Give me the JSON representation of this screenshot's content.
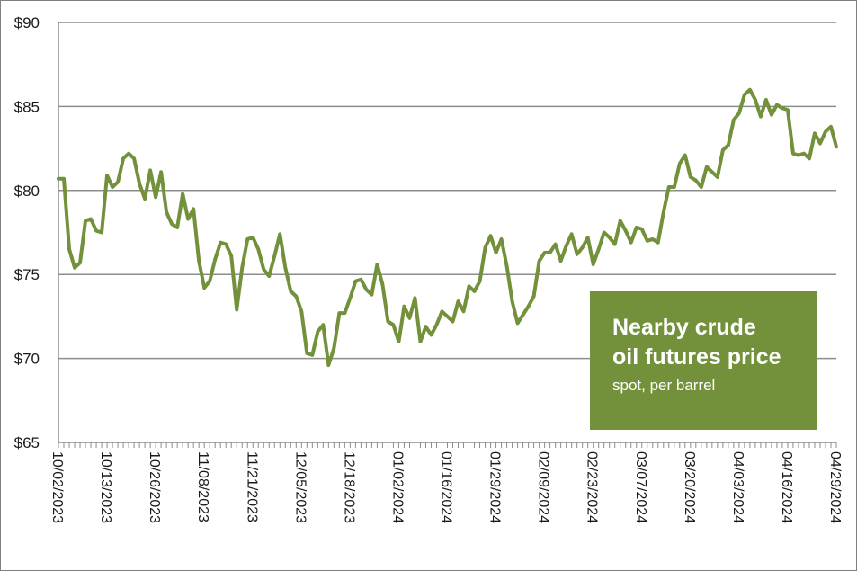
{
  "chart_data": {
    "type": "line",
    "series": [
      {
        "name": "",
        "color": "#72913a",
        "values": [
          80.7,
          80.7,
          76.5,
          75.4,
          75.7,
          78.2,
          78.3,
          77.6,
          77.5,
          80.9,
          80.2,
          80.5,
          81.9,
          82.2,
          81.9,
          80.4,
          79.5,
          81.2,
          79.6,
          81.1,
          78.7,
          78.0,
          77.8,
          79.8,
          78.3,
          78.9,
          75.8,
          74.2,
          74.6,
          75.9,
          76.9,
          76.8,
          76.1,
          72.9,
          75.4,
          77.1,
          77.2,
          76.5,
          75.3,
          74.9,
          76.1,
          77.4,
          75.4,
          74.0,
          73.7,
          72.8,
          70.3,
          70.2,
          71.6,
          72.0,
          69.6,
          70.6,
          72.7,
          72.7,
          73.6,
          74.6,
          74.7,
          74.1,
          73.8,
          75.6,
          74.4,
          72.2,
          72.0,
          71.0,
          73.1,
          72.4,
          73.6,
          71.0,
          71.9,
          71.4,
          72.0,
          72.8,
          72.5,
          72.2,
          73.4,
          72.8,
          74.3,
          74.0,
          74.6,
          76.6,
          77.3,
          76.3,
          77.1,
          75.5,
          73.4,
          72.1,
          72.6,
          73.1,
          73.7,
          75.8,
          76.3,
          76.3,
          76.8,
          75.8,
          76.7,
          77.4,
          76.2,
          76.6,
          77.2,
          75.6,
          76.5,
          77.5,
          77.2,
          76.8,
          78.2,
          77.6,
          76.9,
          77.8,
          77.7,
          77.0,
          77.1,
          76.9,
          78.7,
          80.2,
          80.2,
          81.6,
          82.1,
          80.8,
          80.6,
          80.2,
          81.4,
          81.1,
          80.8,
          82.4,
          82.7,
          84.2,
          84.6,
          85.7,
          86.0,
          85.4,
          84.4,
          85.4,
          84.5,
          85.1,
          84.9,
          84.8,
          82.2,
          82.1,
          82.2,
          81.9,
          83.4,
          82.8,
          83.5,
          83.8,
          82.6
        ]
      }
    ],
    "x_tick_labels": [
      "10/02/2023",
      "10/13/2023",
      "10/26/2023",
      "11/08/2023",
      "11/21/2023",
      "12/05/2023",
      "12/18/2023",
      "01/02/2024",
      "01/16/2024",
      "01/29/2024",
      "02/09/2024",
      "02/23/2024",
      "03/07/2024",
      "03/20/2024",
      "04/03/2024",
      "04/16/2024",
      "04/29/2024"
    ],
    "y_ticks": [
      65,
      70,
      75,
      80,
      85,
      90
    ],
    "y_tick_labels": [
      "$65",
      "$70",
      "$75",
      "$80",
      "$85",
      "$90"
    ],
    "ylim": [
      65,
      90
    ],
    "grid": "horizontal",
    "legend": {
      "title": "Nearby crude oil futures price",
      "subtitle": "spot, per barrel",
      "background": "#72913a"
    },
    "gridline_color": "#8c8c8c"
  }
}
